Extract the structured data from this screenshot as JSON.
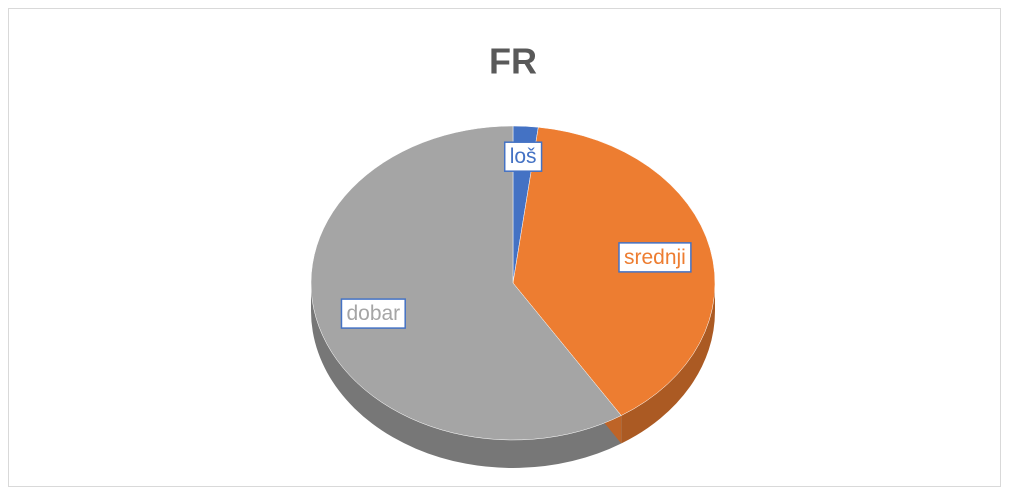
{
  "chart_data": {
    "type": "pie",
    "title": "FR",
    "categories": [
      "loš",
      "srednji",
      "dobar"
    ],
    "values": [
      2,
      39,
      59
    ],
    "colors": [
      "#4472c4",
      "#ed7d31",
      "#a5a5a5"
    ]
  }
}
